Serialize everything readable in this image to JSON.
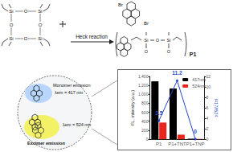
{
  "scheme": {
    "reaction": "Heck reaction",
    "product": "P1",
    "bromine": "Br",
    "silicon": "Si",
    "oxygen": "O",
    "monomer": {
      "title": "Monomer emission",
      "emission": "λem = 417 nm"
    },
    "excimer": {
      "title": "Excimer emission",
      "emission": "λem = 524 nm"
    }
  },
  "chart_data": {
    "type": "bar",
    "categories": [
      "P1",
      "P1+TNT",
      "P1+TNP"
    ],
    "y_label": "FL. intensity (a.u.)",
    "y2_label": "I417/I524",
    "series": [
      {
        "name": "417nm",
        "color": "#000000",
        "values": [
          1290,
          1130,
          10
        ]
      },
      {
        "name": "524nm",
        "color": "#e8241c",
        "values": [
          370,
          100,
          5
        ]
      },
      {
        "type": "line",
        "axis": "y2",
        "color": "#2346c8",
        "marker": "circle",
        "data_labels": true,
        "values": [
          3.5,
          11.2,
          0
        ]
      }
    ],
    "ylim": [
      0,
      1400
    ],
    "yticks": [
      0,
      200,
      400,
      600,
      800,
      1000,
      1200,
      1400
    ],
    "y2lim": [
      0,
      12
    ],
    "y2ticks": [
      0,
      2,
      4,
      6,
      8,
      10,
      12
    ],
    "grid": false,
    "legend": "top-right"
  }
}
